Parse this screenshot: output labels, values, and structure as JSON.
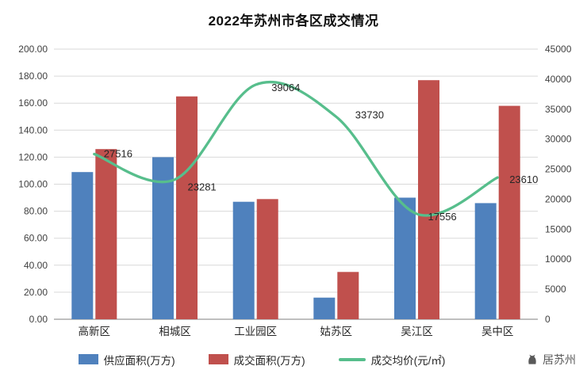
{
  "chart_data": {
    "type": "combo-bar-line",
    "title": "2022年苏州市各区成交情况",
    "categories": [
      "高新区",
      "相城区",
      "工业园区",
      "姑苏区",
      "吴江区",
      "吴中区"
    ],
    "series": [
      {
        "name": "供应面积(万方)",
        "type": "bar",
        "axis": "left",
        "color": "#4F81BD",
        "values": [
          109,
          120,
          87,
          16,
          90,
          86
        ]
      },
      {
        "name": "成交面积(万方)",
        "type": "bar",
        "axis": "left",
        "color": "#C0504D",
        "values": [
          126,
          165,
          89,
          35,
          177,
          158
        ]
      },
      {
        "name": "成交均价(元/㎡)",
        "type": "line",
        "axis": "right",
        "color": "#57BE8C",
        "values": [
          27516,
          23281,
          39064,
          33730,
          17556,
          23610
        ]
      }
    ],
    "data_labels": [
      "27516",
      "23281",
      "39064",
      "33730",
      "17556",
      "23610"
    ],
    "left_axis": {
      "min": 0,
      "max": 200,
      "step": 20,
      "tick_labels": [
        "0.00",
        "20.00",
        "40.00",
        "60.00",
        "80.00",
        "100.00",
        "120.00",
        "140.00",
        "160.00",
        "180.00",
        "200.00"
      ]
    },
    "right_axis": {
      "min": 0,
      "max": 45000,
      "step": 5000,
      "tick_labels": [
        "0",
        "5000",
        "10000",
        "15000",
        "20000",
        "25000",
        "30000",
        "35000",
        "40000",
        "45000"
      ]
    },
    "legend_position": "bottom",
    "grid": true
  },
  "watermark": {
    "text": "居苏州"
  }
}
